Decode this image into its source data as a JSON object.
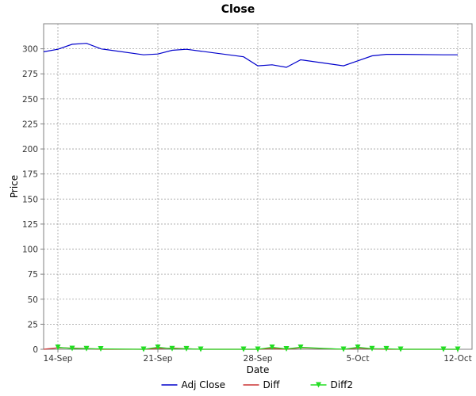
{
  "chart_data": {
    "type": "line",
    "title": "Close",
    "xlabel": "Date",
    "ylabel": "Price",
    "ylim": [
      0,
      325
    ],
    "yticks": [
      0,
      25,
      50,
      75,
      100,
      125,
      150,
      175,
      200,
      225,
      250,
      275,
      300
    ],
    "grid": true,
    "legend_placement": "bottom",
    "x_ticks": [
      {
        "date": "2018-09-14",
        "label": "14-Sep"
      },
      {
        "date": "2018-09-21",
        "label": "21-Sep"
      },
      {
        "date": "2018-09-28",
        "label": "28-Sep"
      },
      {
        "date": "2018-10-05",
        "label": "5-Oct"
      },
      {
        "date": "2018-10-12",
        "label": "12-Oct"
      }
    ],
    "xlim": [
      "2018-09-13",
      "2018-10-13"
    ],
    "series": [
      {
        "name": "Adj Close",
        "color": "#0000cc",
        "marker": "none",
        "x": [
          "2018-09-13",
          "2018-09-14",
          "2018-09-15",
          "2018-09-16",
          "2018-09-17",
          "2018-09-20",
          "2018-09-21",
          "2018-09-22",
          "2018-09-23",
          "2018-09-27",
          "2018-09-28",
          "2018-09-29",
          "2018-09-30",
          "2018-10-01",
          "2018-10-04",
          "2018-10-05",
          "2018-10-06",
          "2018-10-07",
          "2018-10-08",
          "2018-10-11",
          "2018-10-12"
        ],
        "y": [
          297,
          299.5,
          304.5,
          305.5,
          300,
          294,
          294.8,
          298.5,
          299.5,
          292,
          283,
          284,
          281.5,
          289,
          283,
          288,
          293,
          294.5,
          294.5,
          294,
          294
        ]
      },
      {
        "name": "Diff",
        "color": "#cc3333",
        "marker": "none",
        "x": [
          "2018-09-13",
          "2018-09-14",
          "2018-09-15",
          "2018-09-16",
          "2018-09-17",
          "2018-09-20",
          "2018-09-21",
          "2018-09-22",
          "2018-09-23",
          "2018-09-24",
          "2018-09-27",
          "2018-09-28",
          "2018-09-29",
          "2018-09-30",
          "2018-10-01",
          "2018-10-04",
          "2018-10-05",
          "2018-10-06",
          "2018-10-07",
          "2018-10-08",
          "2018-10-11",
          "2018-10-12"
        ],
        "y": [
          0,
          1.5,
          1.2,
          0.8,
          0,
          0,
          0.8,
          1.2,
          0.6,
          0,
          0,
          0,
          0.8,
          0,
          1.5,
          0,
          1.2,
          0.5,
          0,
          0,
          0,
          0
        ]
      },
      {
        "name": "Diff2",
        "color": "#22dd22",
        "marker": "triangle-down",
        "x": [
          "2018-09-14",
          "2018-09-15",
          "2018-09-16",
          "2018-09-17",
          "2018-09-20",
          "2018-09-21",
          "2018-09-22",
          "2018-09-23",
          "2018-09-24",
          "2018-09-27",
          "2018-09-28",
          "2018-09-29",
          "2018-09-30",
          "2018-10-01",
          "2018-10-04",
          "2018-10-05",
          "2018-10-06",
          "2018-10-07",
          "2018-10-08",
          "2018-10-11",
          "2018-10-12"
        ],
        "y": [
          2,
          0.8,
          0.6,
          0.4,
          0,
          2,
          0.6,
          0.5,
          0,
          0,
          0,
          2,
          0.4,
          2,
          0,
          2,
          0.6,
          0.5,
          0,
          0,
          0
        ]
      }
    ]
  }
}
